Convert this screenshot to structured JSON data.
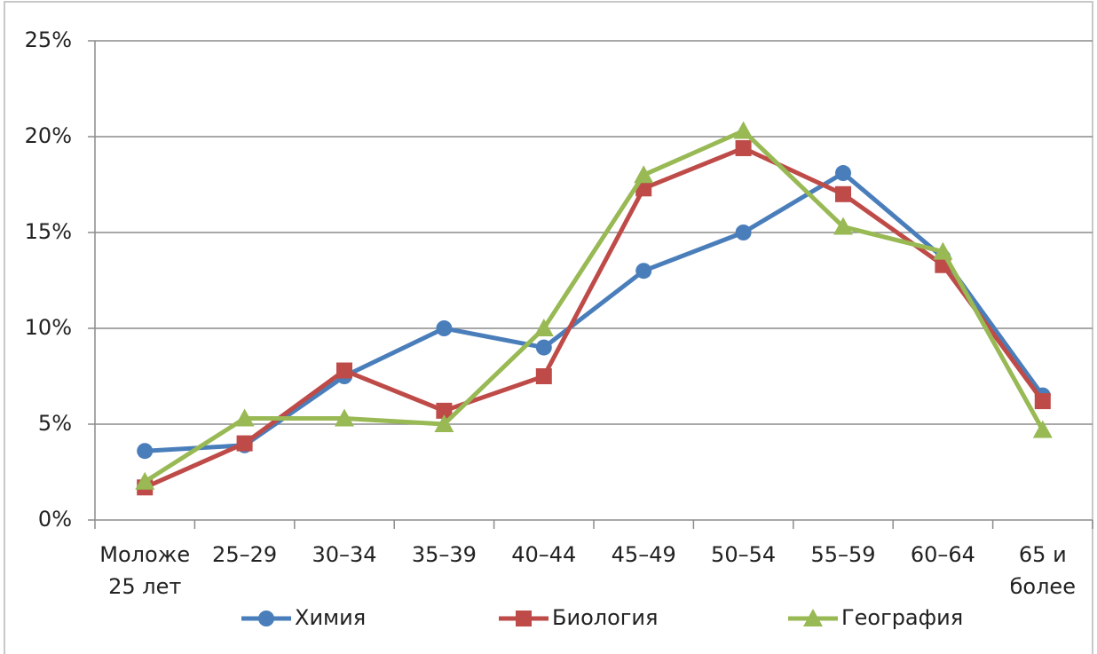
{
  "chart_data": {
    "type": "line",
    "categories": [
      "Моложе\n25 лет",
      "25–29",
      "30–34",
      "35–39",
      "40–44",
      "45–49",
      "50–54",
      "55–59",
      "60–64",
      "65 и\nболее"
    ],
    "series": [
      {
        "name": "Химия",
        "color": "#4a7ebb",
        "marker": "circle",
        "values": [
          3.6,
          3.9,
          7.5,
          10,
          9,
          13,
          15,
          18.1,
          13.7,
          6.5
        ]
      },
      {
        "name": "Биология",
        "color": "#be4b48",
        "marker": "square",
        "values": [
          1.7,
          4.0,
          7.8,
          5.7,
          7.5,
          17.3,
          19.4,
          17.0,
          13.3,
          6.2
        ]
      },
      {
        "name": "География",
        "color": "#98b954",
        "marker": "triangle",
        "values": [
          2.0,
          5.3,
          5.3,
          5.0,
          10.0,
          18.0,
          20.3,
          15.3,
          14.0,
          4.7
        ]
      }
    ],
    "ylim": [
      0,
      25
    ],
    "yticks": [
      {
        "value": 0,
        "label": "0%"
      },
      {
        "value": 5,
        "label": "5%"
      },
      {
        "value": 10,
        "label": "10%"
      },
      {
        "value": 15,
        "label": "15%"
      },
      {
        "value": 20,
        "label": "20%"
      },
      {
        "value": 25,
        "label": "25%"
      }
    ],
    "grid": true,
    "legend": "bottom"
  }
}
